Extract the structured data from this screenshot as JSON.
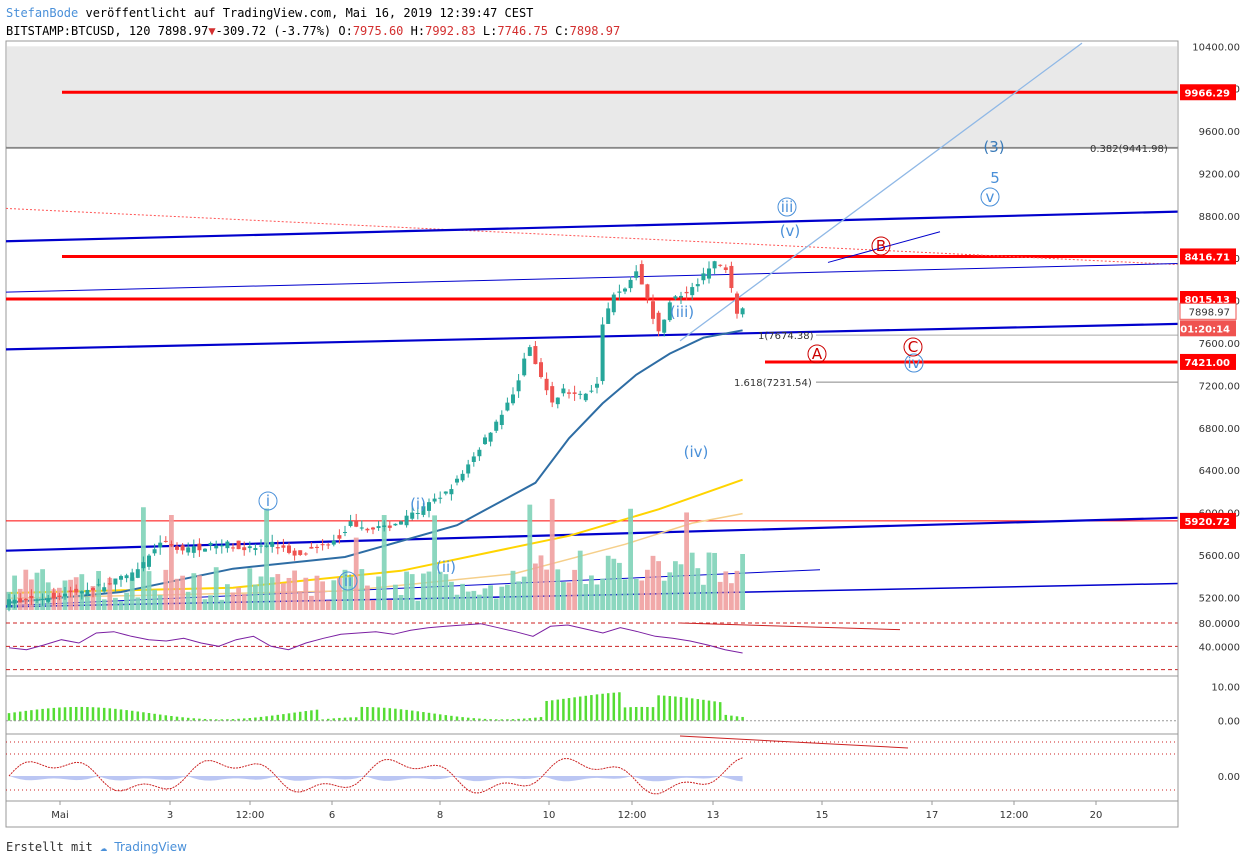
{
  "header": {
    "author": "StefanBode",
    "published": "veröffentlicht auf TradingView.com, Mai 16, 2019 12:39:47 CEST",
    "symbol": "BITSTAMP:BTCUSD, 120",
    "last": "7898.97",
    "change": "-309.72 (-3.77%)",
    "o_label": "O:",
    "o_value": "7975.60",
    "h_label": "H:",
    "h_value": "7992.83",
    "l_label": "L:",
    "l_value": "7746.75",
    "c_label": "C:",
    "c_value": "7898.97"
  },
  "footer": {
    "created_with": "Erstellt mit",
    "brand": "TradingView"
  },
  "colors": {
    "up": "#26a69a",
    "down": "#ef5350",
    "hline": "#ff0000",
    "channel": "#0000cc",
    "ma_blue": "#2e6da4",
    "ma_yellow": "#ffd400",
    "ma_tan": "#f5cf8a",
    "wave_blue": "#4a90d9",
    "wave_red": "#cc0000",
    "rsi": "#7b1fa2",
    "macd": "#55dd33"
  },
  "chart_data": [
    {
      "type": "line",
      "panel": "price",
      "symbol": "BITSTAMP:BTCUSD",
      "interval": "120",
      "x_ticks": [
        "Mai",
        "3",
        "12:00",
        "6",
        "8",
        "10",
        "12:00",
        "13",
        "15",
        "17",
        "12:00",
        "20"
      ],
      "y_ticks": [
        5200,
        5600,
        6000,
        6400,
        6800,
        7200,
        7600,
        8000,
        8400,
        8800,
        9200,
        9600,
        10000,
        10400
      ],
      "y_tick_labels": [
        "5200.00",
        "5600.00",
        "6000.00",
        "6400.00",
        "6800.00",
        "7200.00",
        "7600.00",
        "8000.00",
        "8400.00",
        "8800.00",
        "9200.00",
        "9600.00",
        "10000.00",
        "10400.00"
      ],
      "ylim": [
        5080,
        10450
      ],
      "price_path": [
        [
          0,
          5150
        ],
        [
          5,
          5180
        ],
        [
          12,
          5240
        ],
        [
          18,
          5310
        ],
        [
          24,
          5440
        ],
        [
          28,
          5720
        ],
        [
          32,
          5650
        ],
        [
          36,
          5680
        ],
        [
          40,
          5700
        ],
        [
          44,
          5660
        ],
        [
          48,
          5700
        ],
        [
          52,
          5610
        ],
        [
          56,
          5660
        ],
        [
          60,
          5780
        ],
        [
          62,
          5900
        ],
        [
          65,
          5860
        ],
        [
          68,
          5850
        ],
        [
          72,
          5950
        ],
        [
          74,
          6000
        ],
        [
          78,
          6150
        ],
        [
          82,
          6350
        ],
        [
          86,
          6700
        ],
        [
          88,
          6860
        ],
        [
          91,
          7100
        ],
        [
          93,
          7450
        ],
        [
          94,
          7550
        ],
        [
          96,
          7250
        ],
        [
          98,
          7050
        ],
        [
          100,
          7150
        ],
        [
          103,
          7100
        ],
        [
          106,
          7200
        ],
        [
          107,
          7800
        ],
        [
          109,
          8050
        ],
        [
          111,
          8100
        ],
        [
          113,
          8300
        ],
        [
          115,
          8000
        ],
        [
          117,
          7700
        ],
        [
          119,
          8000
        ],
        [
          121,
          8050
        ],
        [
          123,
          8100
        ],
        [
          125,
          8250
        ],
        [
          127,
          8350
        ],
        [
          129,
          8300
        ],
        [
          131,
          7898.97
        ]
      ],
      "horizontal_levels": [
        {
          "label": "9966.29",
          "value": 9966.29,
          "color": "#ff0000"
        },
        {
          "label": "8416.71",
          "value": 8416.71,
          "color": "#ff0000"
        },
        {
          "label": "8015.13",
          "value": 8015.13,
          "color": "#ff0000"
        },
        {
          "label": "7421.00",
          "value": 7421.0,
          "color": "#ff0000"
        },
        {
          "label": "5920.72",
          "value": 5920.72,
          "color": "#ff0000"
        }
      ],
      "price_tags": [
        {
          "label": "7898.97",
          "role": "last"
        },
        {
          "label": "01:20:14",
          "role": "countdown"
        }
      ],
      "fib_label": "0.382(9441.98)",
      "fib_value": 9441.98,
      "annotations": [
        "1(7674.38)",
        "1.618(7231.54)"
      ],
      "wave_labels": [
        "i",
        "(i)",
        "ii",
        "(ii)",
        "(iii)",
        "iii",
        "(v)",
        "(iv)",
        "iv",
        "(3)",
        "5",
        "v",
        "A",
        "B",
        "C"
      ]
    },
    {
      "type": "line",
      "panel": "rsi",
      "y_tick_labels": [
        "80.0000",
        "40.0000"
      ],
      "ylim": [
        10,
        100
      ],
      "bands": [
        85,
        50,
        15
      ],
      "series": [
        {
          "values": [
            48,
            45,
            52,
            60,
            55,
            70,
            72,
            65,
            60,
            58,
            62,
            55,
            50,
            60,
            65,
            50,
            45,
            55,
            62,
            68,
            70,
            72,
            68,
            74,
            78,
            80,
            82,
            84,
            78,
            72,
            65,
            80,
            82,
            76,
            70,
            78,
            72,
            65,
            62,
            58,
            52,
            45,
            40
          ]
        }
      ]
    },
    {
      "type": "bar",
      "panel": "macd_histogram",
      "y_tick_labels": [
        "10.00",
        "0.00"
      ],
      "ylim": [
        -3,
        13
      ]
    },
    {
      "type": "line",
      "panel": "oscillator",
      "y_tick_labels": [
        "0.00"
      ]
    }
  ]
}
